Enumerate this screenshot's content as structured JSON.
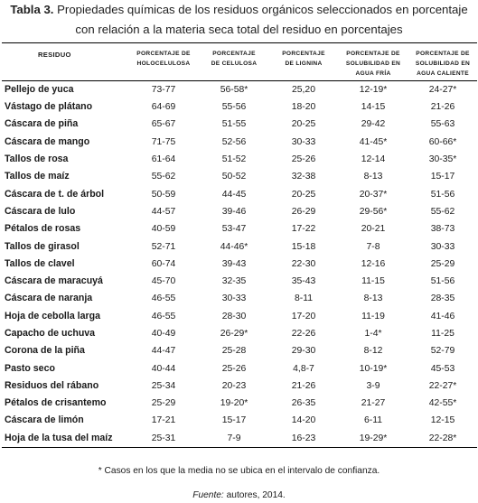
{
  "caption": {
    "label": "Tabla 3.",
    "line1": "Propiedades químicas de los residuos orgánicos seleccionados en porcentaje",
    "line2": "con relación a la materia seca total del residuo en porcentajes"
  },
  "table": {
    "headers": {
      "residuo": "RESIDUO",
      "holocelulosa": [
        "PORCENTAJE DE",
        "HOLOCELULOSA"
      ],
      "celulosa": [
        "PORCENTAJE",
        "DE CELULOSA"
      ],
      "lignina": [
        "PORCENTAJE",
        "DE LIGNINA"
      ],
      "sol_fria": [
        "PORCENTAJE DE",
        "SOLUBILIDAD EN",
        "AGUA FRÍA"
      ],
      "sol_caliente": [
        "PORCENTAJE DE",
        "SOLUBILIDAD EN",
        "AGUA CALIENTE"
      ]
    },
    "rows": [
      [
        "Pellejo de yuca",
        "73-77",
        "56-58*",
        "25,20",
        "12-19*",
        "24-27*"
      ],
      [
        "Vástago de plátano",
        "64-69",
        "55-56",
        "18-20",
        "14-15",
        "21-26"
      ],
      [
        "Cáscara de piña",
        "65-67",
        "51-55",
        "20-25",
        "29-42",
        "55-63"
      ],
      [
        "Cáscara de mango",
        "71-75",
        "52-56",
        "30-33",
        "41-45*",
        "60-66*"
      ],
      [
        "Tallos de rosa",
        "61-64",
        "51-52",
        "25-26",
        "12-14",
        "30-35*"
      ],
      [
        "Tallos de maíz",
        "55-62",
        "50-52",
        "32-38",
        "8-13",
        "15-17"
      ],
      [
        "Cáscara de t. de árbol",
        "50-59",
        "44-45",
        "20-25",
        "20-37*",
        "51-56"
      ],
      [
        "Cáscara de lulo",
        "44-57",
        "39-46",
        "26-29",
        "29-56*",
        "55-62"
      ],
      [
        "Pétalos de rosas",
        "40-59",
        "53-47",
        "17-22",
        "20-21",
        "38-73"
      ],
      [
        "Tallos de girasol",
        "52-71",
        "44-46*",
        "15-18",
        "7-8",
        "30-33"
      ],
      [
        "Tallos de clavel",
        "60-74",
        "39-43",
        "22-30",
        "12-16",
        "25-29"
      ],
      [
        "Cáscara de maracuyá",
        "45-70",
        "32-35",
        "35-43",
        "11-15",
        "51-56"
      ],
      [
        "Cáscara de naranja",
        "46-55",
        "30-33",
        "8-11",
        "8-13",
        "28-35"
      ],
      [
        "Hoja de cebolla larga",
        "46-55",
        "28-30",
        "17-20",
        "11-19",
        "41-46"
      ],
      [
        "Capacho de uchuva",
        "40-49",
        "26-29*",
        "22-26",
        "1-4*",
        "11-25"
      ],
      [
        "Corona de la piña",
        "44-47",
        "25-28",
        "29-30",
        "8-12",
        "52-79"
      ],
      [
        "Pasto seco",
        "40-44",
        "25-26",
        "4,8-7",
        "10-19*",
        "45-53"
      ],
      [
        "Residuos del rábano",
        "25-34",
        "20-23",
        "21-26",
        "3-9",
        "22-27*"
      ],
      [
        "Pétalos de crisantemo",
        "25-29",
        "19-20*",
        "26-35",
        "21-27",
        "42-55*"
      ],
      [
        "Cáscara de limón",
        "17-21",
        "15-17",
        "14-20",
        "6-11",
        "12-15"
      ],
      [
        "Hoja de la tusa del maíz",
        "25-31",
        "7-9",
        "16-23",
        "19-29*",
        "22-28*"
      ]
    ]
  },
  "footnote": "* Casos en los que la media no se ubica en el intervalo de confianza.",
  "source": {
    "label": "Fuente:",
    "text": "autores, 2014."
  }
}
